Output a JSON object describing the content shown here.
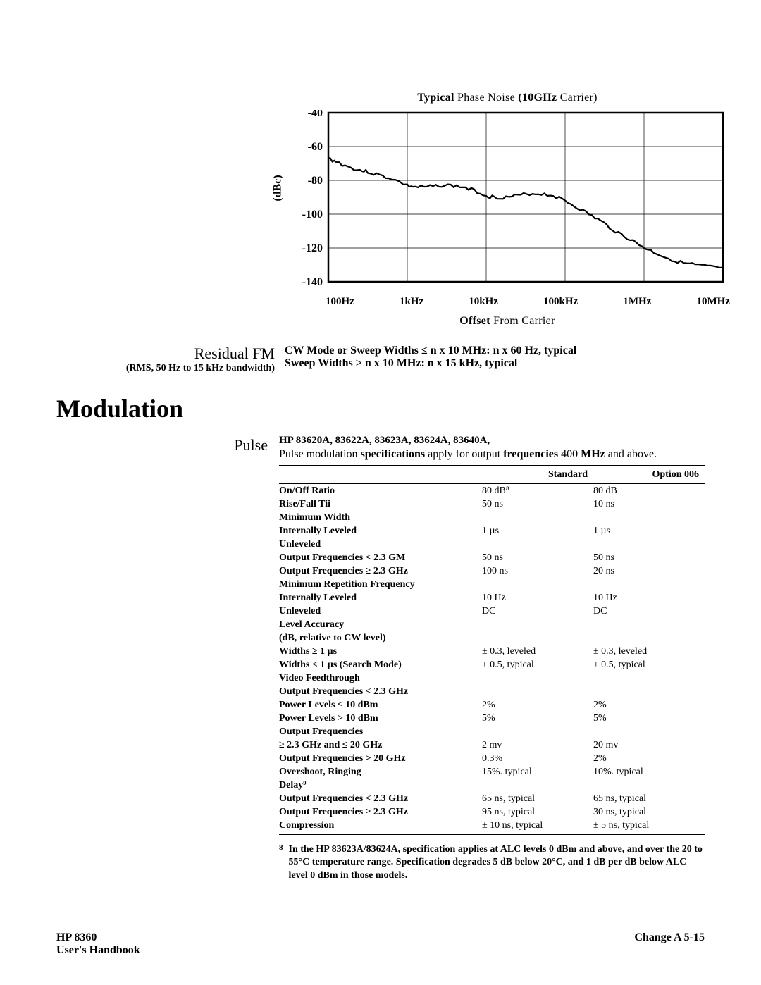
{
  "chart": {
    "title_pre": "Typical",
    "title_mid": " Phase Noise ",
    "title_post": "(10GHz",
    "title_end": " Carrier)",
    "y_label": "(dBc)",
    "x_label_pre": "Offset",
    "x_label_post": " From Carrier",
    "y_ticks": [
      "-40",
      "-60",
      "-80",
      "-100",
      "-120",
      "-140"
    ],
    "x_ticks": [
      "100Hz",
      "1kHz",
      "10kHz",
      "100kHz",
      "1MHz",
      "10MHz"
    ],
    "series_color": "#000000",
    "bg": "#ffffff",
    "grid_color": "#000000",
    "ylim": [
      -140,
      -40
    ],
    "points": [
      [
        0,
        -67
      ],
      [
        2,
        -69
      ],
      [
        5,
        -72
      ],
      [
        8,
        -74
      ],
      [
        10,
        -75
      ],
      [
        13,
        -77
      ],
      [
        16,
        -79
      ],
      [
        20,
        -83
      ],
      [
        22,
        -84
      ],
      [
        25,
        -84
      ],
      [
        28,
        -83
      ],
      [
        31,
        -83
      ],
      [
        34,
        -84
      ],
      [
        37,
        -86
      ],
      [
        40,
        -89
      ],
      [
        42,
        -90
      ],
      [
        45,
        -90
      ],
      [
        48,
        -89
      ],
      [
        51,
        -88
      ],
      [
        54,
        -88
      ],
      [
        57,
        -89
      ],
      [
        60,
        -92
      ],
      [
        63,
        -96
      ],
      [
        66,
        -100
      ],
      [
        69,
        -104
      ],
      [
        72,
        -109
      ],
      [
        75,
        -113
      ],
      [
        78,
        -117
      ],
      [
        81,
        -121
      ],
      [
        84,
        -124
      ],
      [
        87,
        -127
      ],
      [
        90,
        -129
      ],
      [
        93,
        -130
      ],
      [
        96,
        -131
      ],
      [
        100,
        -132
      ]
    ]
  },
  "residual_fm": {
    "heading": "Residual FM",
    "sub": "(RMS, 50 Hz to 15 kHz bandwidth)",
    "line1a": "CW Mode or Sweep Widths ",
    "line1b": "≤ n x 10 MHz: n x 60 Hz, typical",
    "line2a": "Sweep Widths ",
    "line2b": "> n x 10 MHz: n x 15 kHz, typical"
  },
  "modulation_heading": "Modulation",
  "pulse": {
    "label": "Pulse",
    "models": "HP 83620A, 83622A, 83623A, 83624A, 83640A,",
    "sub_a": "Pulse modulation ",
    "sub_b": "specifications",
    "sub_c": " apply for output ",
    "sub_d": "frequencies",
    "sub_e": " 400 ",
    "sub_f": "MHz",
    "sub_g": " and above."
  },
  "table": {
    "headers": [
      "",
      "Standard",
      "Option 006"
    ],
    "rows": [
      {
        "l": "On/Off Ratio",
        "s": "80 dB⁸",
        "o": "80 dB"
      },
      {
        "l": "Rise/Fall Tii",
        "s": "50 ns",
        "o": "10 ns"
      },
      {
        "l": "Minimum Width",
        "s": "",
        "o": ""
      },
      {
        "l": "Internally Leveled",
        "s": "1 µs",
        "o": "1 µs"
      },
      {
        "l": "Unleveled",
        "s": "",
        "o": ""
      },
      {
        "l": "Output Frequencies < 2.3  GM",
        "s": "50 ns",
        "o": "50 ns"
      },
      {
        "l": "Output Frequencies  ≥  2.3  GHz",
        "s": "100 ns",
        "o": "20 ns"
      },
      {
        "l": "Minimum Repetition Frequency",
        "s": "",
        "o": ""
      },
      {
        "l": "Internally Leveled",
        "s": "10 Hz",
        "o": "10 Hz"
      },
      {
        "l": "Unleveled",
        "s": "DC",
        "o": "DC"
      },
      {
        "l": "Level Accuracy",
        "s": "",
        "o": ""
      },
      {
        "l": "(dB, relative to CW level)",
        "s": "",
        "o": ""
      },
      {
        "l": "Widths  ≥  1  µs",
        "s": "± 0.3, leveled",
        "o": "± 0.3, leveled"
      },
      {
        "l": "Widths  < 1 µs (Search Mode)",
        "s": "± 0.5, typical",
        "o": "± 0.5, typical"
      },
      {
        "l": "Video Feedthrough",
        "s": "",
        "o": ""
      },
      {
        "l": "Output Frequencies < 2.3 GHz",
        "s": "",
        "o": ""
      },
      {
        "l": "Power Levels ≤ 10 dBm",
        "s": "2%",
        "o": "2%"
      },
      {
        "l": "Power Levels > 10 dBm",
        "s": "5%",
        "o": "5%"
      },
      {
        "l": "Output Frequencies",
        "s": "",
        "o": ""
      },
      {
        "l": "≥ 2.3 GHz and  ≤ 20 GHz",
        "s": "2 mv",
        "o": "20 mv"
      },
      {
        "l": "Output Frequencies > 20 GHz",
        "s": "0.3%",
        "o": "2%"
      },
      {
        "l": "Overshoot, Ringing",
        "s": "15%. typical",
        "o": "10%. typical"
      },
      {
        "l": "Delay⁹",
        "s": "",
        "o": ""
      },
      {
        "l": "Output Frequencies < 2.3 GHz",
        "s": "65 ns, typical",
        "o": "65 ns, typical"
      },
      {
        "l": "Output Frequencies  ≥  2.3  GHz",
        "s": "95 ns, typical",
        "o": "30 ns, typical"
      },
      {
        "l": "Compression",
        "s": "± 10 ns, typical",
        "o": "± 5 ns, typical"
      }
    ]
  },
  "footnote": {
    "mark": "8",
    "text": "In the HP 83623A/83624A, specification applies at ALC levels 0 dBm and above, and over the 20 to 55°C temperature range. Specification degrades 5 dB below 20°C, and 1 dB per dB below ALC level 0 dBm in those models."
  },
  "footer": {
    "left1": "HP 8360",
    "left2": "User's Handbook",
    "right": "Change A 5-15"
  }
}
